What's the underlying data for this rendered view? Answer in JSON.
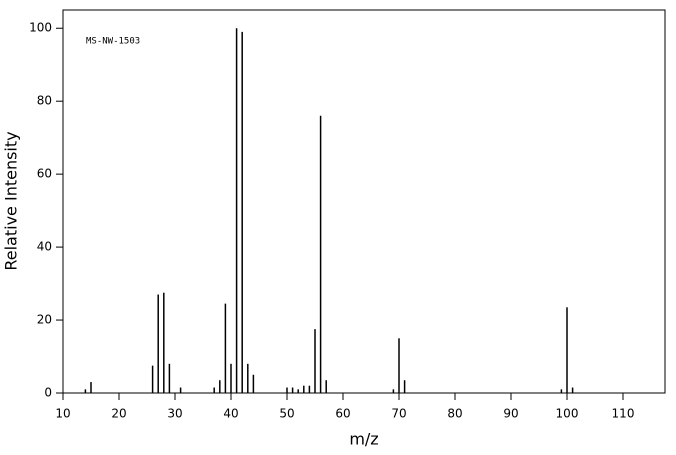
{
  "chart_data": {
    "type": "stick",
    "annotation": "MS-NW-1503",
    "x_label": "m/z",
    "y_label": "Relative Intensity",
    "x": [
      14,
      15,
      26,
      27,
      28,
      29,
      31,
      37,
      38,
      39,
      40,
      41,
      42,
      43,
      44,
      50,
      51,
      52,
      53,
      54,
      55,
      56,
      57,
      69,
      70,
      71,
      99,
      100,
      101
    ],
    "values": [
      1,
      3,
      7.5,
      27,
      27.5,
      8,
      1.5,
      1.5,
      3.5,
      24.5,
      8,
      100,
      99,
      8,
      5,
      1.5,
      1.5,
      1,
      2,
      2,
      17.5,
      76,
      3.5,
      1,
      15,
      3.5,
      1,
      23.5,
      1.5
    ],
    "color": "#000000",
    "xlim": [
      10,
      117.5
    ],
    "ylim": [
      0,
      105
    ],
    "xticks": [
      10,
      20,
      30,
      40,
      50,
      60,
      70,
      80,
      90,
      100,
      110
    ],
    "yticks": [
      0,
      20,
      40,
      60,
      80,
      100
    ]
  }
}
